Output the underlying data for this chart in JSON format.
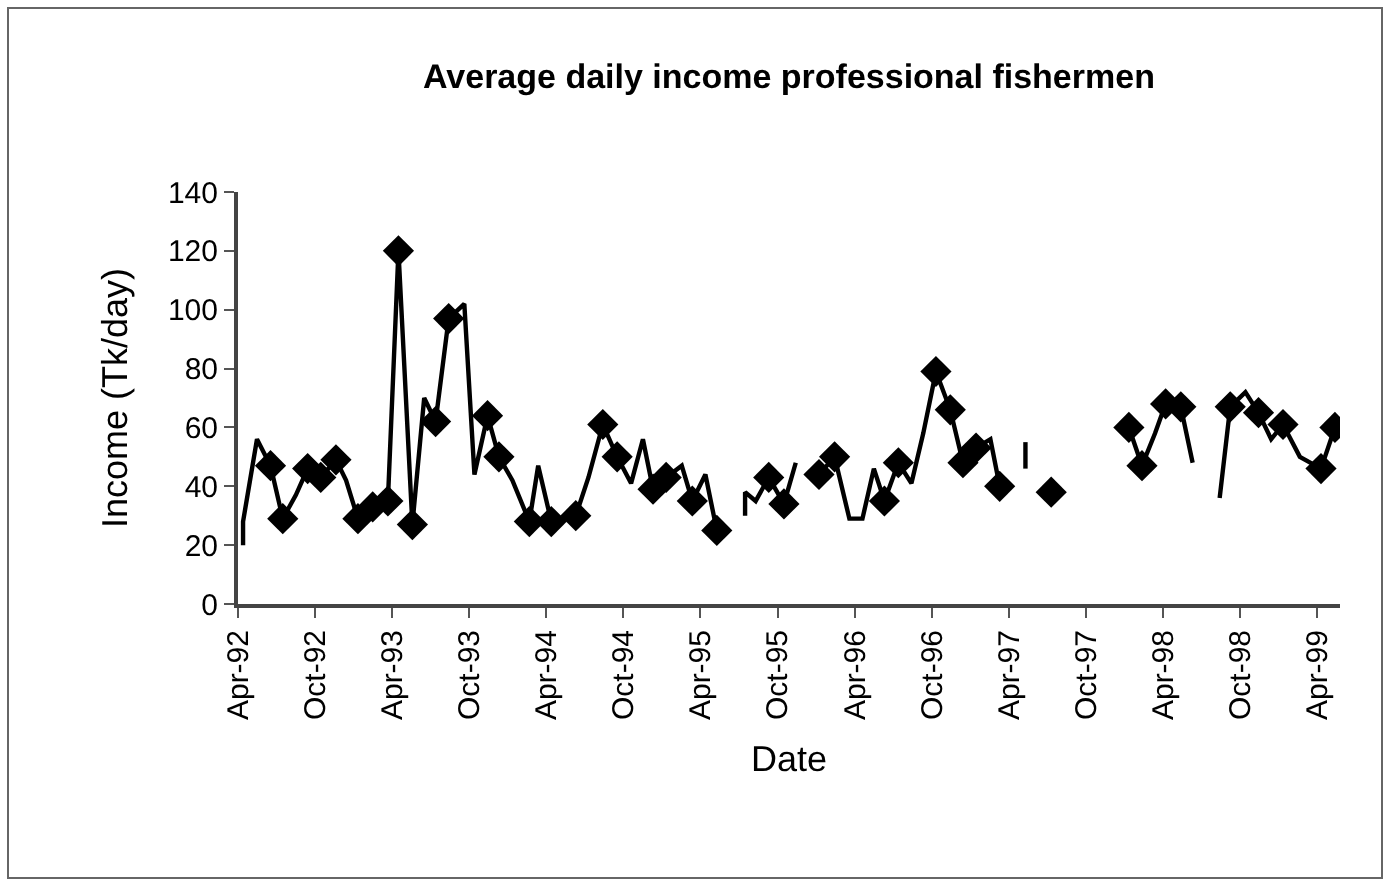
{
  "chart_data": {
    "type": "line",
    "title": "Average daily income professional fishermen",
    "xlabel": "Date",
    "ylabel": "Income (Tk/day)",
    "xlim": [
      "1992-04-01",
      "1999-05-25"
    ],
    "xticks": [
      {
        "value": "1992-04-01",
        "label": "Apr-92"
      },
      {
        "value": "1992-10-01",
        "label": "Oct-92"
      },
      {
        "value": "1993-04-01",
        "label": "Apr-93"
      },
      {
        "value": "1993-10-01",
        "label": "Oct-93"
      },
      {
        "value": "1994-04-01",
        "label": "Apr-94"
      },
      {
        "value": "1994-10-01",
        "label": "Oct-94"
      },
      {
        "value": "1995-04-01",
        "label": "Apr-95"
      },
      {
        "value": "1995-10-01",
        "label": "Oct-95"
      },
      {
        "value": "1996-04-01",
        "label": "Apr-96"
      },
      {
        "value": "1996-10-01",
        "label": "Oct-96"
      },
      {
        "value": "1997-04-01",
        "label": "Apr-97"
      },
      {
        "value": "1997-10-01",
        "label": "Oct-97"
      },
      {
        "value": "1998-04-01",
        "label": "Apr-98"
      },
      {
        "value": "1998-10-01",
        "label": "Oct-98"
      },
      {
        "value": "1999-04-01",
        "label": "Apr-99"
      }
    ],
    "ylim": [
      0,
      140
    ],
    "yticks": [
      0,
      20,
      40,
      60,
      80,
      100,
      120,
      140
    ],
    "series": [
      {
        "marker": "none",
        "line_style": "solid",
        "color": "#000000",
        "x": [
          "1992-04-13",
          "1992-04-13",
          "1992-05-16",
          "1992-06-17",
          "1992-07-16",
          "1992-08-16",
          "1992-09-13",
          "1992-10-14",
          "1992-11-19",
          "1992-12-13",
          "1993-01-10",
          "1993-02-14",
          "1993-03-22",
          "1993-04-16",
          "1993-05-19",
          "1993-06-16",
          "1993-07-13",
          "1993-08-13",
          "1993-09-19",
          "1993-10-13",
          "1993-11-13",
          "1993-12-10",
          "1994-01-11",
          "1994-02-20",
          "1994-03-13",
          "1994-04-13",
          "1994-06-10",
          "1994-07-10",
          "1994-08-13",
          "1994-09-16",
          "1994-10-19",
          "1994-11-16",
          "1994-12-10",
          "1995-01-10",
          "1995-02-16",
          "1995-03-13",
          "1995-04-13",
          "1995-05-10",
          "1995-06-13",
          "1995-07-16",
          "1995-07-16",
          "1995-08-10",
          "1995-09-10",
          "1995-10-16",
          "1995-11-13",
          "1995-12-10",
          "1996-01-07",
          "1996-02-13",
          "1996-03-19",
          "1996-04-19",
          "1996-05-16",
          "1996-06-10",
          "1996-07-13",
          "1996-08-13",
          "1996-09-10",
          "1996-10-10",
          "1996-11-13",
          "1996-11-28",
          "1996-12-13",
          "1997-01-13",
          "1997-02-16",
          "1997-03-10",
          "1997-04-10",
          "1997-05-10",
          "1997-05-10",
          "1997-08-10",
          "1998-01-10",
          "1998-02-10",
          "1998-03-13",
          "1998-04-07",
          "1998-05-13",
          "1998-06-10",
          "1998-07-10",
          "1998-08-13",
          "1998-09-07",
          "1998-10-13",
          "1998-11-13",
          "1998-12-13",
          "1999-01-10",
          "1999-02-19",
          "1999-04-10",
          "1999-05-13"
        ],
        "values": [
          20,
          28,
          56,
          47,
          29,
          37,
          46,
          43,
          49,
          42,
          29,
          33,
          35,
          120,
          27,
          70,
          62,
          97,
          102,
          44,
          64,
          50,
          42,
          28,
          47,
          28,
          30,
          43,
          61,
          50,
          41,
          56,
          39,
          43,
          47,
          35,
          44,
          25,
          null,
          30,
          38,
          35,
          43,
          34,
          48,
          null,
          44,
          50,
          29,
          29,
          46,
          35,
          48,
          41,
          58,
          79,
          66,
          57,
          48,
          53,
          56,
          40,
          null,
          46,
          55,
          null,
          60,
          47,
          58,
          68,
          67,
          48,
          null,
          36,
          67,
          72,
          65,
          56,
          61,
          50,
          46,
          60
        ]
      },
      {
        "type": "scatter",
        "marker": "diamond",
        "color": "#000000",
        "x": [
          "1992-06-17",
          "1992-07-16",
          "1992-09-13",
          "1992-10-14",
          "1992-11-19",
          "1993-01-10",
          "1993-02-14",
          "1993-03-22",
          "1993-04-16",
          "1993-05-19",
          "1993-07-13",
          "1993-08-13",
          "1993-11-13",
          "1993-12-10",
          "1994-02-20",
          "1994-04-13",
          "1994-06-10",
          "1994-08-13",
          "1994-09-16",
          "1994-12-10",
          "1995-01-10",
          "1995-03-13",
          "1995-05-10",
          "1995-09-10",
          "1995-10-16",
          "1996-01-07",
          "1996-02-13",
          "1996-06-10",
          "1996-07-13",
          "1996-10-10",
          "1996-11-13",
          "1996-12-13",
          "1997-01-13",
          "1997-03-10",
          "1997-07-10",
          "1998-01-10",
          "1998-02-10",
          "1998-04-07",
          "1998-05-13",
          "1998-09-07",
          "1998-11-13",
          "1999-01-10",
          "1999-04-10",
          "1999-05-13"
        ],
        "values": [
          47,
          29,
          46,
          43,
          49,
          29,
          33,
          35,
          120,
          27,
          62,
          97,
          64,
          50,
          28,
          28,
          30,
          61,
          50,
          39,
          43,
          35,
          25,
          43,
          34,
          44,
          50,
          35,
          48,
          79,
          66,
          48,
          53,
          40,
          38,
          60,
          47,
          68,
          67,
          67,
          65,
          61,
          46,
          60
        ]
      }
    ]
  }
}
